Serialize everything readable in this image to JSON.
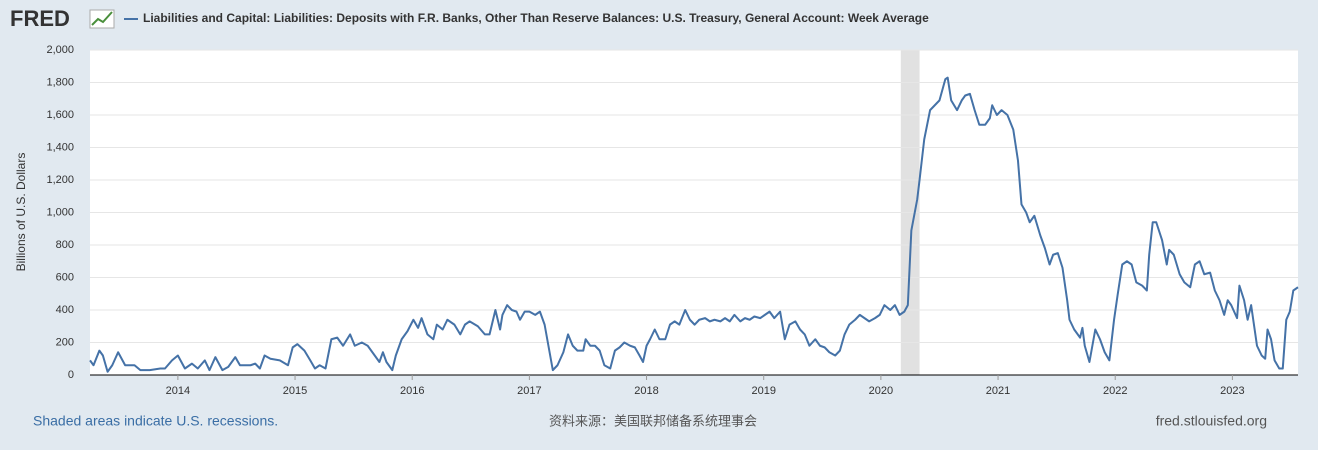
{
  "logo": "FRED",
  "footer": {
    "note": "Shaded areas indicate U.S. recessions.",
    "source": "资料来源：美国联邦储备系统理事会",
    "site": "fred.stlouisfed.org"
  },
  "chart_data": {
    "type": "line",
    "y_label": "Billions of U.S. Dollars",
    "grid": true,
    "xlim": [
      2013.25,
      2023.56
    ],
    "xticks": [
      2014,
      2015,
      2016,
      2017,
      2018,
      2019,
      2020,
      2021,
      2022,
      2023
    ],
    "ylim": [
      0,
      2000
    ],
    "yticks": [
      0,
      200,
      400,
      600,
      800,
      {
        "value": 1000,
        "label": "1,000"
      },
      {
        "value": 1200,
        "label": "1,200"
      },
      {
        "value": 1400,
        "label": "1,400"
      },
      {
        "value": 1600,
        "label": "1,600"
      },
      {
        "value": 1800,
        "label": "1,800"
      },
      {
        "value": 2000,
        "label": "2,000"
      }
    ],
    "recessions": [
      {
        "start": 2020.17,
        "end": 2020.33
      }
    ],
    "recession_color": "#e1e1e1",
    "x": [
      2013.25,
      2013.28,
      2013.33,
      2013.36,
      2013.4,
      2013.44,
      2013.49,
      2013.55,
      2013.63,
      2013.68,
      2013.76,
      2013.85,
      2013.89,
      2013.95,
      2014.0,
      2014.06,
      2014.12,
      2014.17,
      2014.23,
      2014.27,
      2014.32,
      2014.38,
      2014.43,
      2014.49,
      2014.53,
      2014.62,
      2014.66,
      2014.7,
      2014.74,
      2014.79,
      2014.87,
      2014.94,
      2014.98,
      2015.02,
      2015.08,
      2015.13,
      2015.17,
      2015.21,
      2015.26,
      2015.31,
      2015.36,
      2015.41,
      2015.47,
      2015.51,
      2015.57,
      2015.62,
      2015.68,
      2015.72,
      2015.75,
      2015.78,
      2015.83,
      2015.86,
      2015.91,
      2015.96,
      2016.01,
      2016.05,
      2016.08,
      2016.13,
      2016.18,
      2016.21,
      2016.26,
      2016.3,
      2016.36,
      2016.41,
      2016.45,
      2016.49,
      2016.56,
      2016.62,
      2016.66,
      2016.71,
      2016.75,
      2016.77,
      2016.81,
      2016.85,
      2016.89,
      2016.92,
      2016.96,
      2017.0,
      2017.05,
      2017.09,
      2017.13,
      2017.17,
      2017.2,
      2017.24,
      2017.29,
      2017.33,
      2017.37,
      2017.41,
      2017.46,
      2017.48,
      2017.52,
      2017.56,
      2017.6,
      2017.64,
      2017.69,
      2017.73,
      2017.77,
      2017.81,
      2017.86,
      2017.9,
      2017.94,
      2017.97,
      2018.0,
      2018.03,
      2018.07,
      2018.11,
      2018.16,
      2018.2,
      2018.24,
      2018.28,
      2018.33,
      2018.37,
      2018.41,
      2018.45,
      2018.5,
      2018.54,
      2018.58,
      2018.63,
      2018.67,
      2018.71,
      2018.75,
      2018.8,
      2018.84,
      2018.88,
      2018.92,
      2018.97,
      2019.01,
      2019.05,
      2019.09,
      2019.14,
      2019.18,
      2019.22,
      2019.27,
      2019.31,
      2019.35,
      2019.39,
      2019.44,
      2019.48,
      2019.52,
      2019.56,
      2019.61,
      2019.65,
      2019.69,
      2019.73,
      2019.78,
      2019.82,
      2019.86,
      2019.9,
      2019.95,
      2019.99,
      2020.03,
      2020.08,
      2020.12,
      2020.16,
      2020.2,
      2020.23,
      2020.26,
      2020.31,
      2020.33,
      2020.37,
      2020.42,
      2020.46,
      2020.5,
      2020.55,
      2020.57,
      2020.6,
      2020.65,
      2020.69,
      2020.72,
      2020.76,
      2020.8,
      2020.84,
      2020.89,
      2020.93,
      2020.95,
      2020.99,
      2021.03,
      2021.08,
      2021.13,
      2021.17,
      2021.2,
      2021.24,
      2021.27,
      2021.31,
      2021.36,
      2021.4,
      2021.44,
      2021.47,
      2021.51,
      2021.55,
      2021.59,
      2021.61,
      2021.65,
      2021.7,
      2021.72,
      2021.74,
      2021.78,
      2021.83,
      2021.87,
      2021.91,
      2021.95,
      2021.99,
      2022.02,
      2022.06,
      2022.1,
      2022.14,
      2022.18,
      2022.23,
      2022.27,
      2022.29,
      2022.32,
      2022.35,
      2022.4,
      2022.44,
      2022.46,
      2022.5,
      2022.55,
      2022.59,
      2022.64,
      2022.68,
      2022.72,
      2022.76,
      2022.81,
      2022.85,
      2022.89,
      2022.93,
      2022.96,
      2022.99,
      2023.04,
      2023.06,
      2023.1,
      2023.13,
      2023.16,
      2023.21,
      2023.25,
      2023.28,
      2023.3,
      2023.33,
      2023.36,
      2023.4,
      2023.43,
      2023.46,
      2023.49,
      2023.52,
      2023.56
    ],
    "series": [
      {
        "name": "Liabilities and Capital: Liabilities: Deposits with F.R. Banks, Other Than Reserve Balances: U.S. Treasury, General Account: Week Average",
        "color": "#4572a7",
        "values": [
          90,
          60,
          150,
          120,
          20,
          60,
          140,
          60,
          60,
          30,
          30,
          40,
          40,
          90,
          120,
          40,
          70,
          40,
          90,
          30,
          110,
          30,
          50,
          110,
          60,
          60,
          70,
          40,
          120,
          100,
          90,
          60,
          170,
          190,
          150,
          90,
          40,
          60,
          40,
          220,
          230,
          180,
          250,
          180,
          200,
          180,
          120,
          80,
          140,
          80,
          30,
          120,
          220,
          270,
          340,
          290,
          350,
          250,
          220,
          310,
          280,
          340,
          310,
          250,
          310,
          330,
          300,
          250,
          250,
          400,
          280,
          370,
          430,
          400,
          390,
          340,
          390,
          390,
          370,
          390,
          310,
          150,
          30,
          60,
          140,
          250,
          180,
          150,
          150,
          220,
          180,
          180,
          150,
          60,
          40,
          150,
          170,
          200,
          180,
          170,
          120,
          80,
          180,
          220,
          280,
          220,
          220,
          310,
          330,
          310,
          400,
          340,
          310,
          340,
          350,
          330,
          340,
          330,
          350,
          330,
          370,
          330,
          350,
          340,
          360,
          350,
          370,
          390,
          350,
          390,
          220,
          310,
          330,
          280,
          250,
          180,
          220,
          180,
          170,
          140,
          120,
          150,
          250,
          310,
          340,
          370,
          350,
          330,
          350,
          370,
          430,
          400,
          430,
          370,
          390,
          430,
          890,
          1080,
          1200,
          1450,
          1630,
          1660,
          1690,
          1820,
          1830,
          1690,
          1630,
          1690,
          1720,
          1730,
          1630,
          1540,
          1540,
          1580,
          1660,
          1600,
          1630,
          1600,
          1510,
          1320,
          1050,
          1000,
          940,
          980,
          860,
          780,
          680,
          740,
          750,
          660,
          460,
          340,
          280,
          230,
          290,
          180,
          80,
          280,
          220,
          140,
          90,
          340,
          490,
          680,
          700,
          680,
          570,
          550,
          520,
          740,
          940,
          940,
          830,
          680,
          770,
          740,
          620,
          570,
          540,
          680,
          700,
          620,
          630,
          520,
          460,
          370,
          460,
          430,
          350,
          550,
          460,
          340,
          430,
          180,
          120,
          100,
          280,
          220,
          90,
          40,
          40,
          340,
          390,
          520,
          540
        ]
      }
    ]
  }
}
